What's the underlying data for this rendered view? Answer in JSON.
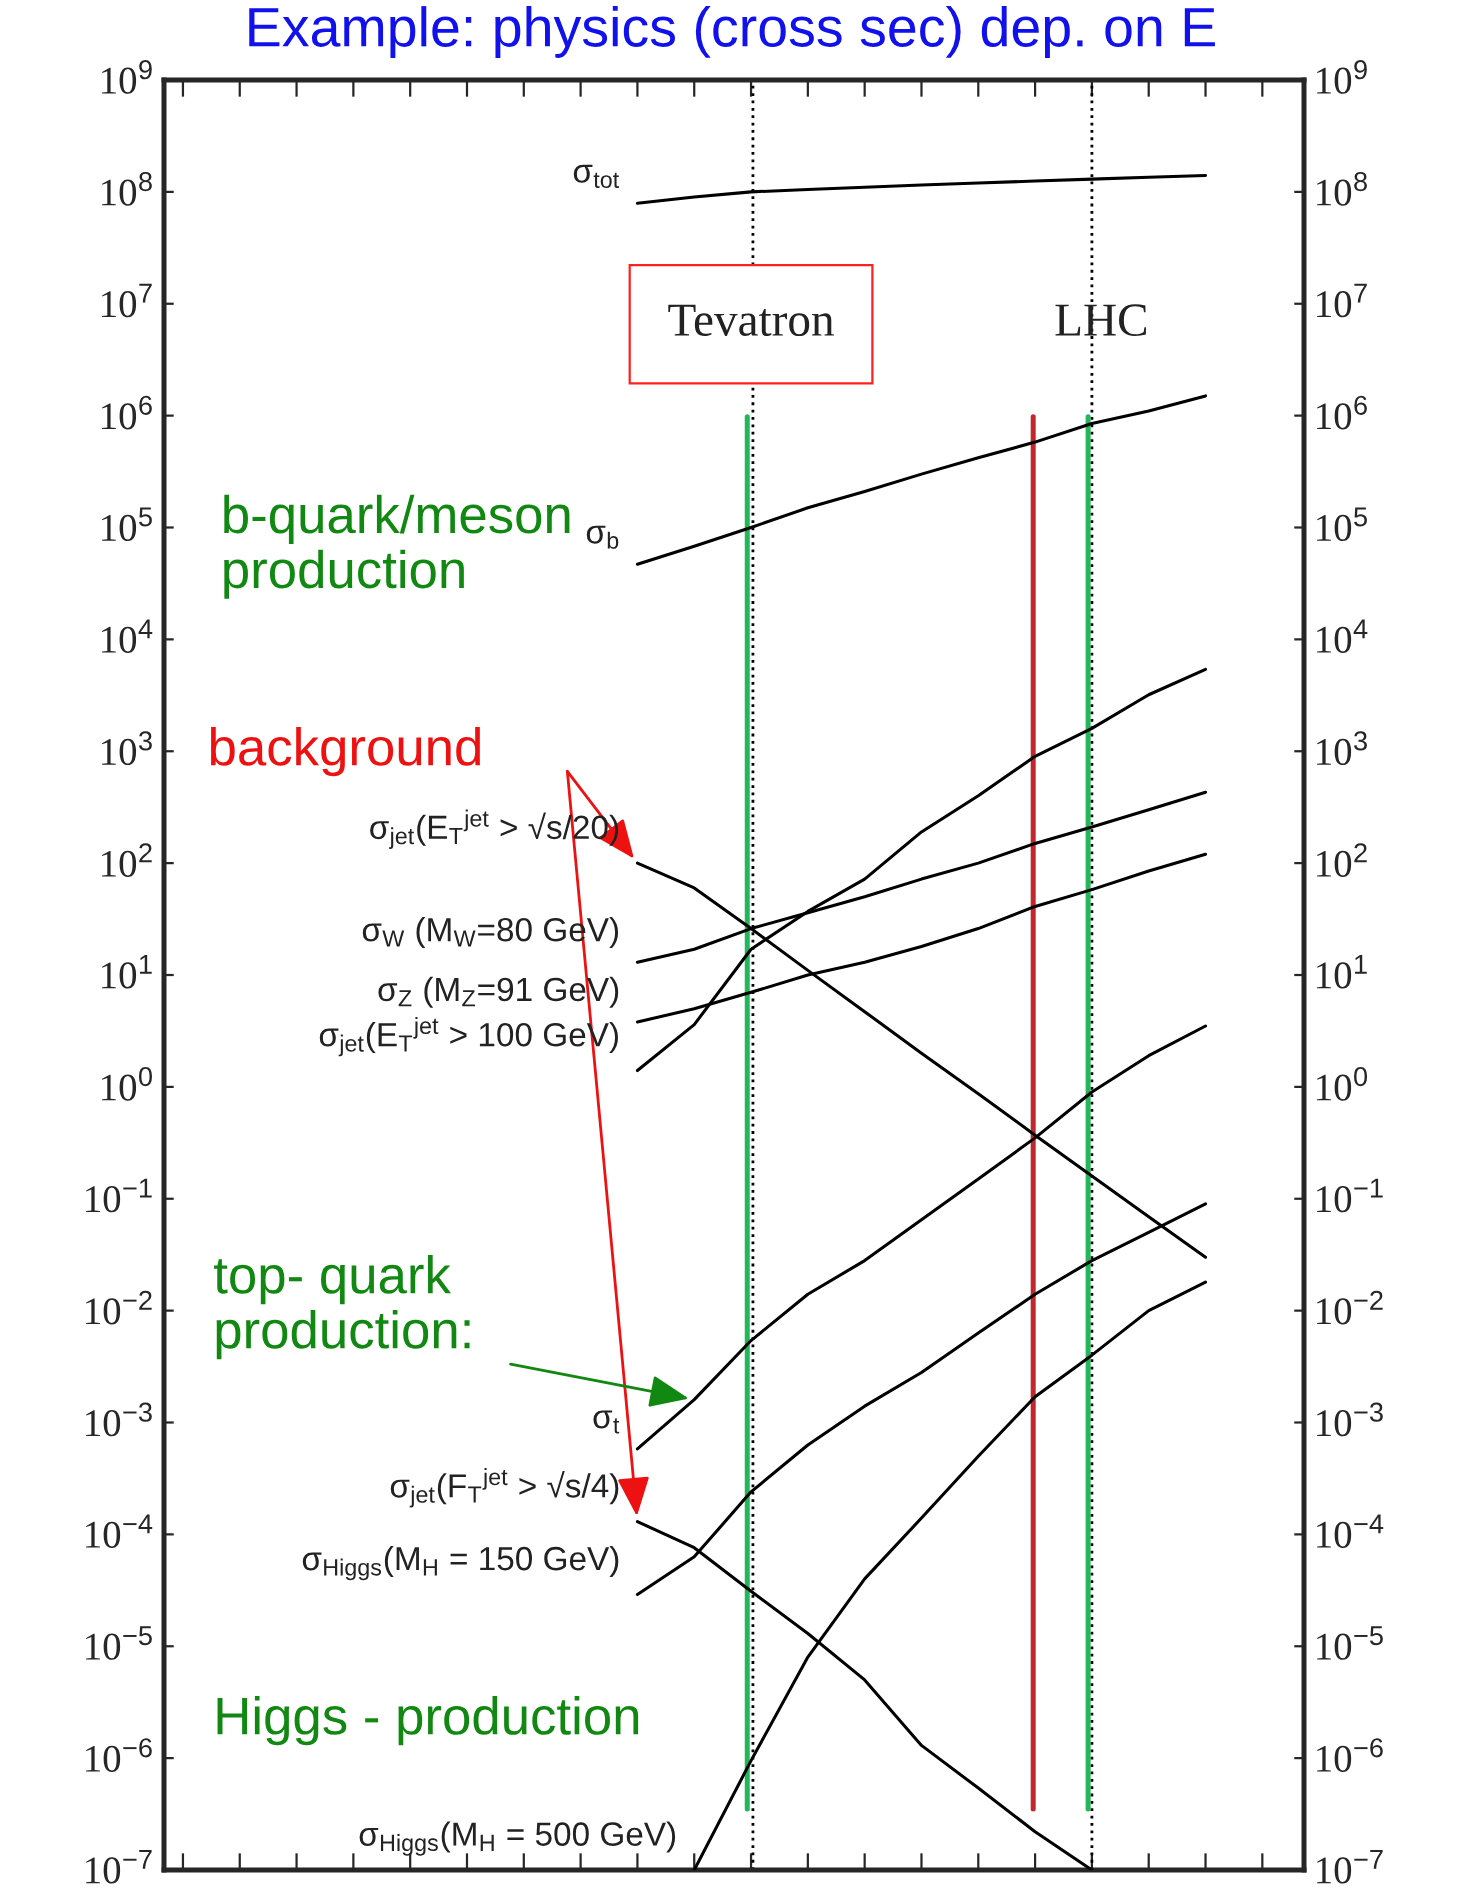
{
  "chart_data": {
    "type": "line",
    "title": "Example: physics (cross sec) dep. on E",
    "categories": [
      null,
      null,
      null,
      null,
      null,
      null,
      null,
      null,
      null,
      null,
      null,
      null,
      null,
      null,
      null,
      null,
      null,
      null,
      null,
      null
    ],
    "series": [
      {
        "name": "σ$_{tot}$",
        "color": "#000000",
        "values": [
          null,
          null,
          null,
          null,
          null,
          null,
          null,
          null,
          79000000.0,
          90000000.0,
          100000000.0,
          105000000.0,
          110000000.0,
          115000000.0,
          120000000.0,
          125000000.0,
          130000000.0,
          135000000.0,
          140000000.0,
          null
        ]
      },
      {
        "name": "σ$_{b}$",
        "color": "#000000",
        "values": [
          null,
          null,
          null,
          null,
          null,
          null,
          null,
          null,
          47000.0,
          68000.0,
          100000.0,
          150000.0,
          210000.0,
          300000.0,
          420000.0,
          580000.0,
          850000.0,
          1100000.0,
          1500000.0,
          null
        ]
      },
      {
        "name": "σ$_{jet}$(E$_{T}$$^{jet}$ > √s/20)",
        "color": "#000000",
        "values": [
          null,
          null,
          null,
          null,
          null,
          null,
          null,
          null,
          100,
          60,
          26,
          11,
          4.7,
          2.0,
          0.87,
          0.37,
          0.16,
          0.069,
          0.03,
          null
        ]
      },
      {
        "name": "σ$_{W}$ (M$_{W}$=80 GeV)",
        "color": "#000000",
        "values": [
          null,
          null,
          null,
          null,
          null,
          null,
          null,
          null,
          13,
          17,
          26,
          36,
          50,
          72,
          100,
          150,
          210,
          300,
          430,
          null
        ]
      },
      {
        "name": "σ$_{Z}$ (M$_{Z}$=91 GeV)",
        "color": "#000000",
        "values": [
          null,
          null,
          null,
          null,
          null,
          null,
          null,
          null,
          3.8,
          5,
          7,
          10,
          13,
          18,
          26,
          41,
          58,
          85,
          120,
          null
        ]
      },
      {
        "name": "σ$_{jet}$(E$_{T}$$^{jet}$ > 100 GeV)",
        "color": "#000000",
        "values": [
          null,
          null,
          null,
          null,
          null,
          null,
          null,
          null,
          1.4,
          3.6,
          17,
          37,
          72,
          190,
          400,
          900,
          1600,
          3200,
          5400,
          null
        ]
      },
      {
        "name": "σ$_{t}$",
        "color": "#000000",
        "values": [
          null,
          null,
          null,
          null,
          null,
          null,
          null,
          null,
          0.00058,
          0.0016,
          0.0054,
          0.014,
          0.028,
          0.065,
          0.15,
          0.35,
          0.9,
          1.9,
          3.5,
          null
        ]
      },
      {
        "name": "σ$_{jet}$(F$_{T}$$^{jet}$ > √s/4)",
        "color": "#000000",
        "values": [
          null,
          null,
          null,
          null,
          null,
          null,
          null,
          null,
          0.00013,
          7.6e-05,
          3.1e-05,
          1.3e-05,
          5e-06,
          1.3e-06,
          5.4e-07,
          2.2e-07,
          1e-07,
          null,
          null,
          null
        ]
      },
      {
        "name": "σ$_{Higgs}$(M$_{H}$ = 150 GeV)",
        "color": "#000000",
        "values": [
          null,
          null,
          null,
          null,
          null,
          null,
          null,
          null,
          2.9e-05,
          6.3e-05,
          0.00024,
          0.00063,
          0.0014,
          0.0028,
          0.0063,
          0.014,
          0.028,
          0.05,
          0.09,
          null
        ]
      },
      {
        "name": "σ$_{Higgs}$(M$_{H}$ = 500 GeV)",
        "color": "#000000",
        "values": [
          null,
          null,
          null,
          null,
          null,
          null,
          null,
          null,
          null,
          1e-07,
          9.5e-07,
          8e-06,
          4e-05,
          0.00014,
          0.0005,
          0.0017,
          0.004,
          0.01,
          0.018,
          null
        ]
      }
    ],
    "annotations": [
      "b-quark/meson\nproduction",
      "background",
      "top- quark\nproduction:",
      "Higgs - production",
      "Tevatron",
      "LHC"
    ],
    "log": "y",
    "ylim": [
      1e-07,
      1000000000.0
    ],
    "yticks": [
      {
        "value": 1000000000.0,
        "label": "10$^{9}$"
      },
      {
        "value": 100000000.0,
        "label": "10$^{8}$"
      },
      {
        "value": 10000000.0,
        "label": "10$^{7}$"
      },
      {
        "value": 1000000.0,
        "label": "10$^{6}$"
      },
      {
        "value": 100000.0,
        "label": "10$^{5}$"
      },
      {
        "value": 10000.0,
        "label": "10$^{4}$"
      },
      {
        "value": 1000.0,
        "label": "10$^{3}$"
      },
      {
        "value": 100.0,
        "label": "10$^{2}$"
      },
      {
        "value": 10.0,
        "label": "10$^{1}$"
      },
      {
        "value": 1,
        "label": "10$^{0}$"
      },
      {
        "value": 0.1,
        "label": "10$^{−1}$"
      },
      {
        "value": 0.01,
        "label": "10$^{−2}$"
      },
      {
        "value": 0.001,
        "label": "10$^{−3}$"
      },
      {
        "value": 0.0001,
        "label": "10$^{−4}$"
      },
      {
        "value": 1e-05,
        "label": "10$^{−5}$"
      },
      {
        "value": 1e-06,
        "label": "10$^{−6}$"
      },
      {
        "value": 1e-07,
        "label": "10$^{−7}$"
      }
    ],
    "grid": false,
    "legend": false,
    "marker": "none",
    "line_style": "solid"
  }
}
